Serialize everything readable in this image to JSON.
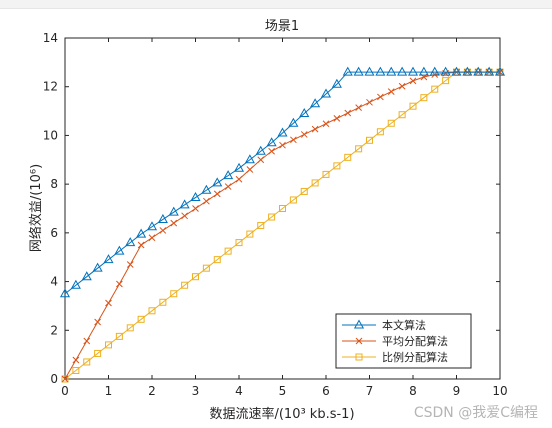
{
  "chart_data": {
    "type": "line",
    "title": "场景1",
    "xlabel": "数据流速率/(10³ kb.s-1)",
    "ylabel": "网络效益/(10⁶)",
    "xlim": [
      0,
      10
    ],
    "ylim": [
      0,
      14
    ],
    "xticks": [
      0,
      1,
      2,
      3,
      4,
      5,
      6,
      7,
      8,
      9,
      10
    ],
    "yticks": [
      0,
      2,
      4,
      6,
      8,
      10,
      12,
      14
    ],
    "grid": false,
    "legend_position": "bottom-right",
    "series": [
      {
        "name": "本文算法",
        "color": "#0072bd",
        "marker": "triangle",
        "x": [
          0,
          0.25,
          0.5,
          0.75,
          1,
          1.25,
          1.5,
          1.75,
          2,
          2.25,
          2.5,
          2.75,
          3,
          3.25,
          3.5,
          3.75,
          4,
          4.25,
          4.5,
          4.75,
          5,
          5.25,
          5.5,
          5.75,
          6,
          6.25,
          6.5,
          6.75,
          7,
          7.25,
          7.5,
          7.75,
          8,
          8.25,
          8.5,
          8.75,
          9,
          9.25,
          9.5,
          9.75,
          10
        ],
        "y": [
          3.5,
          3.85,
          4.2,
          4.55,
          4.9,
          5.25,
          5.6,
          5.95,
          6.25,
          6.55,
          6.85,
          7.15,
          7.45,
          7.75,
          8.05,
          8.35,
          8.65,
          9.0,
          9.35,
          9.7,
          10.1,
          10.5,
          10.9,
          11.3,
          11.7,
          12.1,
          12.6,
          12.6,
          12.6,
          12.6,
          12.6,
          12.6,
          12.6,
          12.6,
          12.6,
          12.6,
          12.6,
          12.6,
          12.6,
          12.6,
          12.6
        ]
      },
      {
        "name": "平均分配算法",
        "color": "#d95319",
        "marker": "x",
        "x": [
          0,
          0.25,
          0.5,
          0.75,
          1,
          1.25,
          1.5,
          1.75,
          2,
          2.25,
          2.5,
          2.75,
          3,
          3.25,
          3.5,
          3.75,
          4,
          4.25,
          4.5,
          4.75,
          5,
          5.25,
          5.5,
          5.75,
          6,
          6.25,
          6.5,
          6.75,
          7,
          7.25,
          7.5,
          7.75,
          8,
          8.25,
          8.5,
          8.75,
          9,
          9.25,
          9.5,
          9.75,
          10
        ],
        "y": [
          0,
          0.78,
          1.56,
          2.34,
          3.12,
          3.9,
          4.7,
          5.5,
          5.8,
          6.1,
          6.4,
          6.7,
          7.0,
          7.3,
          7.6,
          7.9,
          8.2,
          8.6,
          9.0,
          9.35,
          9.6,
          9.82,
          10.04,
          10.26,
          10.48,
          10.7,
          10.92,
          11.14,
          11.36,
          11.58,
          11.8,
          12.02,
          12.24,
          12.4,
          12.5,
          12.55,
          12.6,
          12.6,
          12.6,
          12.6,
          12.6
        ]
      },
      {
        "name": "比例分配算法",
        "color": "#edb120",
        "marker": "square",
        "x": [
          0,
          0.25,
          0.5,
          0.75,
          1,
          1.25,
          1.5,
          1.75,
          2,
          2.25,
          2.5,
          2.75,
          3,
          3.25,
          3.5,
          3.75,
          4,
          4.25,
          4.5,
          4.75,
          5,
          5.25,
          5.5,
          5.75,
          6,
          6.25,
          6.5,
          6.75,
          7,
          7.25,
          7.5,
          7.75,
          8,
          8.25,
          8.5,
          8.75,
          9,
          9.25,
          9.5,
          9.75,
          10
        ],
        "y": [
          0,
          0.35,
          0.7,
          1.05,
          1.4,
          1.75,
          2.1,
          2.45,
          2.8,
          3.15,
          3.5,
          3.85,
          4.2,
          4.55,
          4.9,
          5.25,
          5.6,
          5.95,
          6.3,
          6.65,
          7.0,
          7.35,
          7.7,
          8.05,
          8.4,
          8.75,
          9.1,
          9.45,
          9.8,
          10.15,
          10.5,
          10.85,
          11.2,
          11.55,
          11.9,
          12.25,
          12.6,
          12.6,
          12.6,
          12.6,
          12.6
        ]
      }
    ]
  },
  "watermark": "CSDN @我爱C编程"
}
